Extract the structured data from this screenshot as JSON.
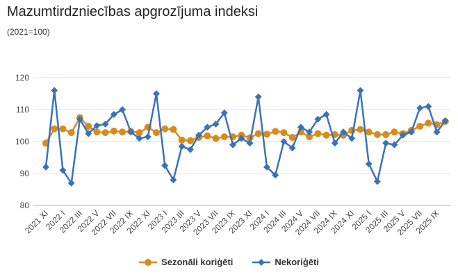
{
  "chart_data": {
    "type": "line",
    "title": "Mazumtirdzniecības apgrozījuma indeksi",
    "subtitle": "(2021=100)",
    "ylim": [
      80,
      120
    ],
    "yticks": [
      80,
      90,
      100,
      110,
      120
    ],
    "grid": true,
    "legend_position": "bottom",
    "x": [
      "2021 XI",
      "2021 XII",
      "2022 I",
      "2022 II",
      "2022 III",
      "2022 IV",
      "2022 V",
      "2022 VI",
      "2022 VII",
      "2022 VIII",
      "2022 IX",
      "2022 X",
      "2022 XI",
      "2022 XII",
      "2023 I",
      "2023 II",
      "2023 III",
      "2023 IV",
      "2023 V",
      "2023 VI",
      "2023 VII",
      "2023 VIII",
      "2023 IX",
      "2023 X",
      "2023 XI",
      "2023 XII",
      "2024 I",
      "2024 II",
      "2024 III",
      "2024 IV",
      "2024 V",
      "2024 VI",
      "2024 VII",
      "2024 VIII",
      "2024 IX",
      "2024 X",
      "2024 XI",
      "2024 XII",
      "2025 I",
      "2025 II",
      "2025 III",
      "2025 IV",
      "2025 V",
      "2025 VI",
      "2025 VII",
      "2025 VIII",
      "2025 IX",
      "2025 X"
    ],
    "xtick_labels": [
      "2021 XI",
      "2022 I",
      "2022 III",
      "2022 V",
      "2022 VII",
      "2022 IX",
      "2022 XI",
      "2023 I",
      "2023 III",
      "2023 V",
      "2023 VII",
      "2023 IX",
      "2023 XI",
      "2024 I",
      "2024 III",
      "2024 V",
      "2024 VII",
      "2024 IX",
      "2024 XI",
      "2025 I",
      "2025 III",
      "2025 V",
      "2025 VII",
      "2025 IX"
    ],
    "series": [
      {
        "name": "Sezonāli koriģēti",
        "color": "#d98a1c",
        "marker": "circle",
        "values": [
          99.5,
          104,
          104,
          102.8,
          107.5,
          104.8,
          103,
          102.8,
          103.3,
          103,
          103.2,
          102.8,
          104.5,
          102.8,
          104,
          103.8,
          100.5,
          100.3,
          101.3,
          101.8,
          101,
          101.5,
          101.5,
          102,
          101.2,
          102.5,
          102.3,
          103.2,
          102.8,
          101.3,
          103,
          101.5,
          102.5,
          102,
          102.2,
          102,
          103.5,
          103.8,
          103,
          102.2,
          102.2,
          103,
          102.5,
          103.5,
          104.8,
          105.8,
          105.3,
          106.3
        ]
      },
      {
        "name": "Nekoriģēti",
        "color": "#3a72b8",
        "marker": "diamond",
        "values": [
          92,
          116,
          91,
          87,
          107,
          102.5,
          105,
          105.5,
          108.5,
          110,
          103,
          101,
          101.5,
          115,
          92.5,
          88,
          98.5,
          97.5,
          102,
          104.5,
          105.5,
          109,
          99,
          101,
          99.5,
          114,
          92,
          89.5,
          100,
          98,
          104.5,
          103,
          107,
          108.5,
          99.5,
          103,
          101,
          116,
          93,
          87.5,
          99.5,
          99,
          102,
          103,
          110.5,
          111,
          103,
          106.5
        ]
      }
    ]
  }
}
